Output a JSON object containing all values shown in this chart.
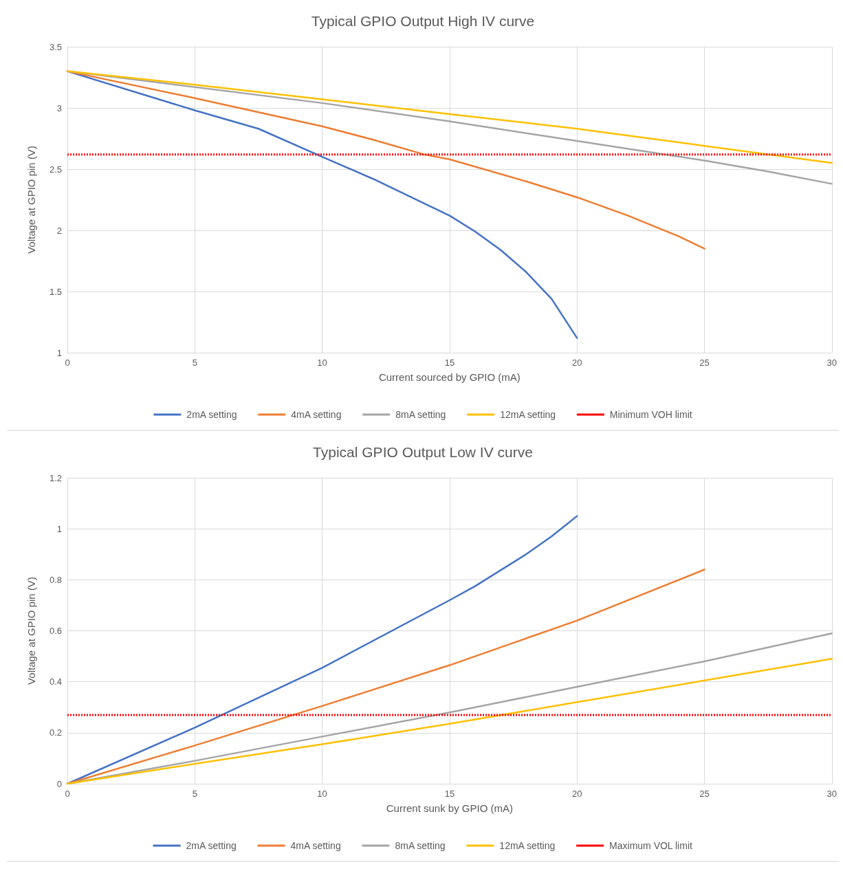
{
  "chart_data": [
    {
      "type": "line",
      "title": "Typical GPIO Output High IV curve",
      "xlabel": "Current sourced by GPIO (mA)",
      "ylabel": "Voltage at GPIO pin (V)",
      "xlim": [
        0,
        30
      ],
      "xticks": [
        0,
        5,
        10,
        15,
        20,
        25,
        30
      ],
      "ylim": [
        1,
        3.5
      ],
      "yticks": [
        1,
        1.5,
        2,
        2.5,
        3,
        3.5
      ],
      "grid": true,
      "legend": "bottom",
      "line_style": "solid",
      "marker": "none",
      "series": [
        {
          "name": "2mA setting",
          "color": "#4472c4",
          "x": [
            0,
            5,
            7.5,
            10,
            12,
            14,
            15,
            16,
            17,
            18,
            19,
            20
          ],
          "values": [
            3.3,
            2.98,
            2.83,
            2.6,
            2.42,
            2.22,
            2.12,
            1.99,
            1.84,
            1.66,
            1.44,
            1.12
          ]
        },
        {
          "name": "4mA setting",
          "color": "#ed7d31",
          "x": [
            0,
            5,
            10,
            12,
            14,
            15,
            18,
            20,
            22,
            24,
            25
          ],
          "values": [
            3.3,
            3.08,
            2.85,
            2.74,
            2.62,
            2.58,
            2.4,
            2.27,
            2.12,
            1.95,
            1.85
          ]
        },
        {
          "name": "8mA setting",
          "color": "#a5a5a5",
          "x": [
            0,
            10,
            15,
            20,
            25,
            27.5,
            30
          ],
          "values": [
            3.3,
            3.04,
            2.89,
            2.73,
            2.57,
            2.48,
            2.38
          ]
        },
        {
          "name": "12mA setting",
          "color": "#ffc000",
          "x": [
            0,
            5,
            10,
            15,
            20,
            25,
            30
          ],
          "values": [
            3.3,
            3.19,
            3.07,
            2.95,
            2.83,
            2.69,
            2.55
          ]
        }
      ],
      "ref_lines": [
        {
          "axis": "y",
          "value": 2.62,
          "label": "Minimum VOH limit",
          "color": "#ff0000",
          "line_style": "dotted"
        }
      ]
    },
    {
      "type": "line",
      "title": "Typical GPIO Output Low IV curve",
      "xlabel": "Current sunk by GPIO (mA)",
      "ylabel": "Voltage at GPIO pin (V)",
      "xlim": [
        0,
        30
      ],
      "xticks": [
        0,
        5,
        10,
        15,
        20,
        25,
        30
      ],
      "ylim": [
        0,
        1.2
      ],
      "yticks": [
        0,
        0.2,
        0.4,
        0.6,
        0.8,
        1,
        1.2
      ],
      "grid": true,
      "legend": "bottom",
      "line_style": "solid",
      "marker": "none",
      "series": [
        {
          "name": "2mA setting",
          "color": "#4472c4",
          "x": [
            0,
            5,
            10,
            15,
            16,
            18,
            19,
            20
          ],
          "values": [
            0,
            0.22,
            0.455,
            0.72,
            0.775,
            0.9,
            0.97,
            1.05
          ]
        },
        {
          "name": "4mA setting",
          "color": "#ed7d31",
          "x": [
            0,
            5,
            10,
            15,
            20,
            21,
            25
          ],
          "values": [
            0,
            0.15,
            0.305,
            0.465,
            0.64,
            0.68,
            0.84
          ]
        },
        {
          "name": "8mA setting",
          "color": "#a5a5a5",
          "x": [
            0,
            5,
            10,
            15,
            20,
            25,
            30
          ],
          "values": [
            0,
            0.09,
            0.185,
            0.28,
            0.38,
            0.48,
            0.59
          ]
        },
        {
          "name": "12mA setting",
          "color": "#ffc000",
          "x": [
            0,
            5,
            10,
            15,
            20,
            25,
            30
          ],
          "values": [
            0,
            0.078,
            0.155,
            0.235,
            0.32,
            0.405,
            0.49
          ]
        }
      ],
      "ref_lines": [
        {
          "axis": "y",
          "value": 0.27,
          "label": "Maximum VOL limit",
          "color": "#ff0000",
          "line_style": "dotted"
        }
      ]
    }
  ]
}
